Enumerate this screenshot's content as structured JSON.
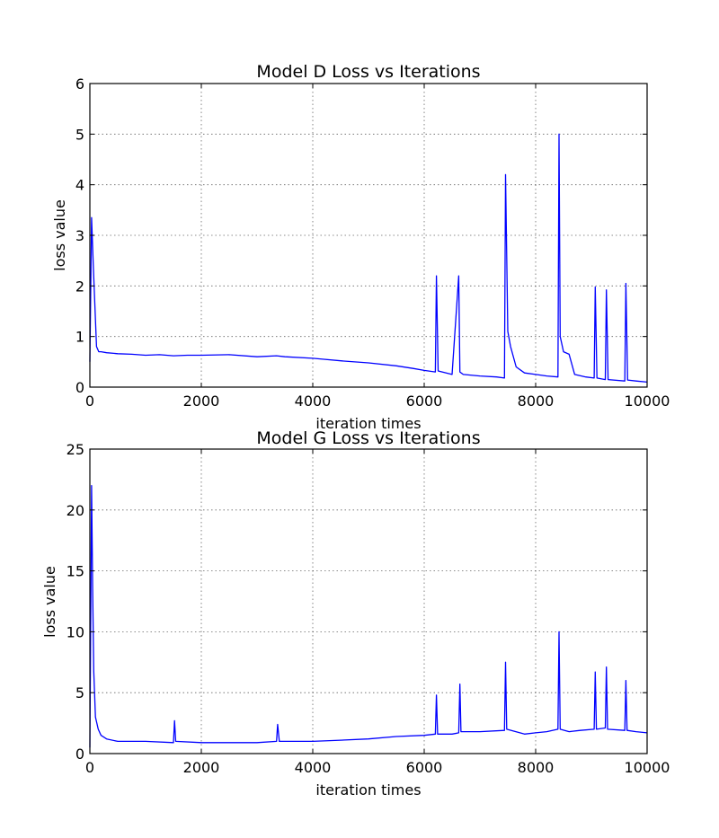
{
  "chart_data": [
    {
      "type": "line",
      "title": "Model D Loss vs Iterations",
      "xlabel": "iteration times",
      "ylabel": "loss value",
      "xlim": [
        0,
        10000
      ],
      "ylim": [
        0,
        6
      ],
      "xticks": [
        0,
        2000,
        4000,
        6000,
        8000,
        10000
      ],
      "yticks": [
        0,
        1,
        2,
        3,
        4,
        5,
        6
      ],
      "grid": true,
      "series": [
        {
          "color": "#0000ff",
          "x": [
            0,
            30,
            60,
            90,
            120,
            160,
            200,
            300,
            500,
            750,
            1000,
            1250,
            1500,
            1750,
            2000,
            2500,
            3000,
            3350,
            3500,
            4000,
            4200,
            4500,
            5000,
            5500,
            5800,
            6000,
            6200,
            6220,
            6250,
            6500,
            6620,
            6640,
            6700,
            7000,
            7300,
            7440,
            7460,
            7500,
            7550,
            7650,
            7800,
            8000,
            8200,
            8400,
            8420,
            8440,
            8500,
            8600,
            8700,
            8900,
            9050,
            9070,
            9100,
            9250,
            9270,
            9300,
            9600,
            9620,
            9650,
            9800,
            10000
          ],
          "values": [
            0.5,
            3.35,
            2.45,
            1.6,
            0.8,
            0.7,
            0.7,
            0.68,
            0.66,
            0.65,
            0.63,
            0.64,
            0.62,
            0.63,
            0.63,
            0.64,
            0.6,
            0.62,
            0.6,
            0.57,
            0.55,
            0.52,
            0.48,
            0.42,
            0.37,
            0.33,
            0.3,
            2.2,
            0.32,
            0.25,
            2.2,
            0.3,
            0.25,
            0.22,
            0.2,
            0.18,
            4.2,
            1.1,
            0.8,
            0.4,
            0.28,
            0.25,
            0.22,
            0.2,
            5.0,
            1.0,
            0.7,
            0.65,
            0.25,
            0.2,
            0.18,
            1.98,
            0.18,
            0.15,
            1.92,
            0.15,
            0.12,
            2.05,
            0.14,
            0.12,
            0.1
          ]
        }
      ]
    },
    {
      "type": "line",
      "title": "Model G Loss vs Iterations",
      "xlabel": "iteration times",
      "ylabel": "loss value",
      "xlim": [
        0,
        10000
      ],
      "ylim": [
        0,
        25
      ],
      "xticks": [
        0,
        2000,
        4000,
        6000,
        8000,
        10000
      ],
      "yticks": [
        0,
        5,
        10,
        15,
        20,
        25
      ],
      "grid": true,
      "series": [
        {
          "color": "#0000ff",
          "x": [
            0,
            30,
            50,
            70,
            100,
            150,
            200,
            300,
            500,
            800,
            1000,
            1500,
            1520,
            1540,
            2000,
            2500,
            3000,
            3350,
            3370,
            3400,
            4000,
            4500,
            5000,
            5500,
            6000,
            6200,
            6220,
            6240,
            6500,
            6620,
            6640,
            6660,
            7000,
            7440,
            7460,
            7480,
            7800,
            8000,
            8200,
            8400,
            8420,
            8440,
            8600,
            8800,
            9050,
            9070,
            9090,
            9250,
            9270,
            9290,
            9600,
            9620,
            9640,
            9800,
            10000
          ],
          "values": [
            0.5,
            22.0,
            13.5,
            6.8,
            3.0,
            2.0,
            1.5,
            1.2,
            1.0,
            1.0,
            1.0,
            0.9,
            2.7,
            1.0,
            0.9,
            0.9,
            0.9,
            1.0,
            2.4,
            1.0,
            1.0,
            1.1,
            1.2,
            1.4,
            1.5,
            1.6,
            4.8,
            1.6,
            1.6,
            1.7,
            5.7,
            1.8,
            1.8,
            1.9,
            7.5,
            2.0,
            1.6,
            1.7,
            1.8,
            2.0,
            10.0,
            2.0,
            1.8,
            1.9,
            2.0,
            6.7,
            2.0,
            2.1,
            7.1,
            2.0,
            1.9,
            6.0,
            1.9,
            1.8,
            1.7
          ]
        }
      ]
    }
  ]
}
